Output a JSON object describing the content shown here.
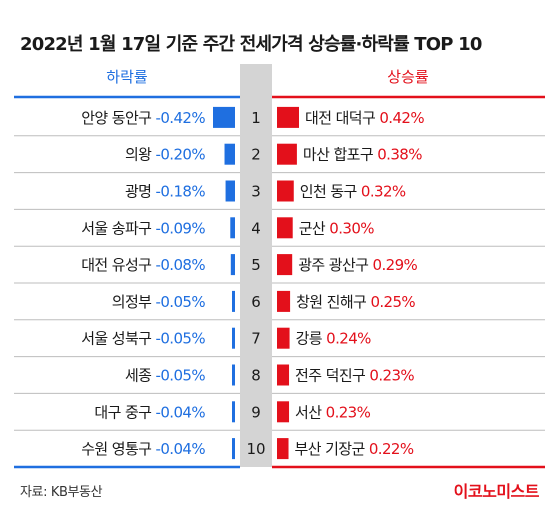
{
  "chart_data": {
    "type": "bar",
    "title": "2022년 1월 17일 기준 주간 전세가격 상승률·하락률 TOP 10",
    "unit": "%",
    "ranks": [
      "1",
      "2",
      "3",
      "4",
      "5",
      "6",
      "7",
      "8",
      "9",
      "10"
    ],
    "series": [
      {
        "name": "하락률",
        "color": "#1f6fe0",
        "categories": [
          "안양 동안구",
          "의왕",
          "광명",
          "서울 송파구",
          "대전 유성구",
          "의정부",
          "서울 성북구",
          "세종",
          "대구 중구",
          "수원 영통구"
        ],
        "values": [
          -0.42,
          -0.2,
          -0.18,
          -0.09,
          -0.08,
          -0.05,
          -0.05,
          -0.05,
          -0.04,
          -0.04
        ],
        "labels": [
          "-0.42%",
          "-0.20%",
          "-0.18%",
          "-0.09%",
          "-0.08%",
          "-0.05%",
          "-0.05%",
          "-0.05%",
          "-0.04%",
          "-0.04%"
        ]
      },
      {
        "name": "상승률",
        "color": "#e3101b",
        "categories": [
          "대전 대덕구",
          "마산 합포구",
          "인천 동구",
          "군산",
          "광주 광산구",
          "창원 진해구",
          "강릉",
          "전주 덕진구",
          "서산",
          "부산 기장군"
        ],
        "values": [
          0.42,
          0.38,
          0.32,
          0.3,
          0.29,
          0.25,
          0.24,
          0.23,
          0.23,
          0.22
        ],
        "labels": [
          "0.42%",
          "0.38%",
          "0.32%",
          "0.30%",
          "0.29%",
          "0.25%",
          "0.24%",
          "0.23%",
          "0.23%",
          "0.22%"
        ]
      }
    ],
    "grid": false,
    "legend": "top"
  },
  "footer": {
    "source": "자료: KB부동산",
    "brand": "이코노미스트"
  },
  "colors": {
    "divider": "#bdbdbd",
    "rank_band": "#d4d4d4"
  }
}
